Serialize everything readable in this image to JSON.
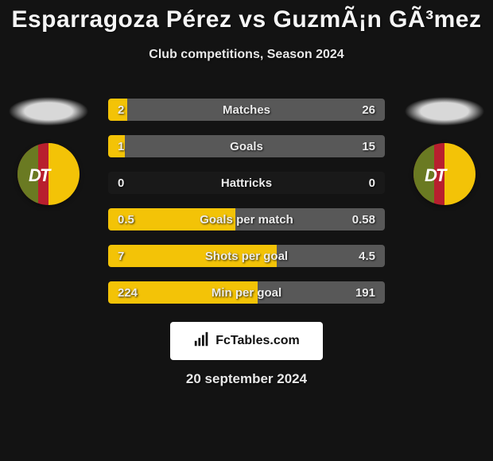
{
  "theme": {
    "page_bg": "#131313",
    "title_color": "#f5f5f5",
    "subtitle_color": "#e8e8e8",
    "date_color": "#e8e8e8",
    "track_bg": "#191919",
    "bar_left_color": "#f3c307",
    "bar_right_color": "#585858",
    "stat_label_color": "#ececec",
    "val_color": "#ececec",
    "brand_box_bg": "#ffffff"
  },
  "header": {
    "title": "Esparragoza Pérez vs GuzmÃ¡n GÃ³mez",
    "subtitle": "Club competitions, Season 2024"
  },
  "stats": [
    {
      "label": "Matches",
      "left_val": "2",
      "right_val": "26",
      "left_pct": 7,
      "right_pct": 93
    },
    {
      "label": "Goals",
      "left_val": "1",
      "right_val": "15",
      "left_pct": 6,
      "right_pct": 94
    },
    {
      "label": "Hattricks",
      "left_val": "0",
      "right_val": "0",
      "left_pct": 0,
      "right_pct": 0
    },
    {
      "label": "Goals per match",
      "left_val": "0.5",
      "right_val": "0.58",
      "left_pct": 46,
      "right_pct": 54
    },
    {
      "label": "Shots per goal",
      "left_val": "7",
      "right_val": "4.5",
      "left_pct": 61,
      "right_pct": 39
    },
    {
      "label": "Min per goal",
      "left_val": "224",
      "right_val": "191",
      "left_pct": 54,
      "right_pct": 46
    }
  ],
  "club_badge": {
    "bg_red": "#b81f2e",
    "stripe_green": "#6a7a22",
    "gold": "#f3c307",
    "text_color": "#ffffff",
    "text": "DT"
  },
  "brand": {
    "text": "FcTables.com"
  },
  "footer": {
    "date": "20 september 2024"
  }
}
